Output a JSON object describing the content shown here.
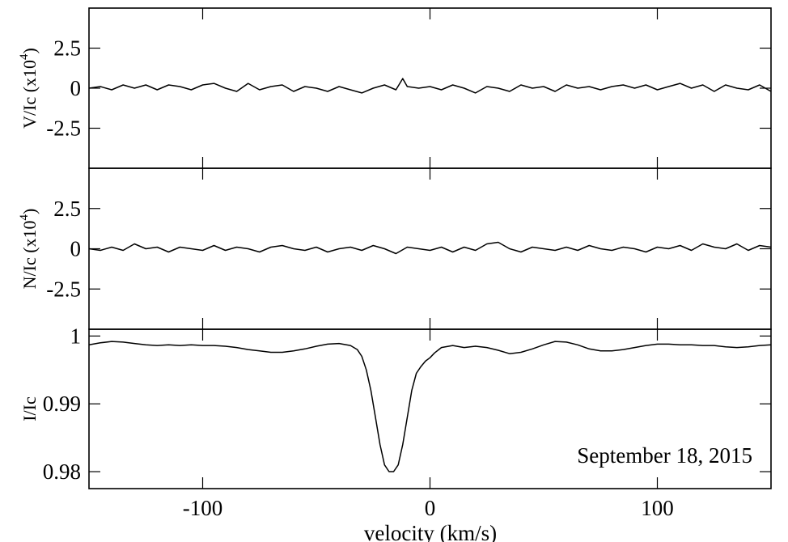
{
  "chart_data": {
    "type": "line",
    "xlabel": "velocity (km/s)",
    "xlim": [
      -150,
      150
    ],
    "x_ticks": [
      -100,
      0,
      100
    ],
    "x_tick_labels": [
      "-100",
      "0",
      "100"
    ],
    "annotation": "September 18, 2015",
    "panels": [
      {
        "id": "stokes-v",
        "ylabel_main": "V/Ic (x10",
        "ylabel_exp": "4",
        "ylabel_close": ")",
        "ylim": [
          -5,
          5
        ],
        "y_ticks": [
          2.5,
          0,
          -2.5
        ],
        "y_tick_labels": [
          "2.5",
          "0",
          "-2.5"
        ],
        "series": [
          {
            "x": [
              -150,
              -145,
              -140,
              -135,
              -130,
              -125,
              -120,
              -115,
              -110,
              -105,
              -100,
              -95,
              -90,
              -85,
              -80,
              -75,
              -70,
              -65,
              -60,
              -55,
              -50,
              -45,
              -40,
              -35,
              -30,
              -25,
              -20,
              -15,
              -12,
              -10,
              -5,
              0,
              5,
              10,
              15,
              20,
              25,
              30,
              35,
              40,
              45,
              50,
              55,
              60,
              65,
              70,
              75,
              80,
              85,
              90,
              95,
              100,
              105,
              110,
              115,
              120,
              125,
              130,
              135,
              140,
              145,
              150
            ],
            "y": [
              0.0,
              0.1,
              -0.1,
              0.2,
              0.0,
              0.2,
              -0.1,
              0.2,
              0.1,
              -0.1,
              0.2,
              0.3,
              0.0,
              -0.2,
              0.3,
              -0.1,
              0.1,
              0.2,
              -0.2,
              0.1,
              0.0,
              -0.2,
              0.1,
              -0.1,
              -0.3,
              0.0,
              0.2,
              -0.1,
              0.6,
              0.1,
              0.0,
              0.1,
              -0.1,
              0.2,
              0.0,
              -0.3,
              0.1,
              0.0,
              -0.2,
              0.2,
              0.0,
              0.1,
              -0.2,
              0.2,
              0.0,
              0.1,
              -0.1,
              0.1,
              0.2,
              0.0,
              0.2,
              -0.1,
              0.1,
              0.3,
              0.0,
              0.2,
              -0.2,
              0.2,
              0.0,
              -0.1,
              0.2,
              -0.2
            ]
          }
        ]
      },
      {
        "id": "null-n",
        "ylabel_main": "N/Ic (x10",
        "ylabel_exp": "4",
        "ylabel_close": ")",
        "ylim": [
          -5,
          5
        ],
        "y_ticks": [
          2.5,
          0,
          -2.5
        ],
        "y_tick_labels": [
          "2.5",
          "0",
          "-2.5"
        ],
        "series": [
          {
            "x": [
              -150,
              -145,
              -140,
              -135,
              -130,
              -125,
              -120,
              -115,
              -110,
              -105,
              -100,
              -95,
              -90,
              -85,
              -80,
              -75,
              -70,
              -65,
              -60,
              -55,
              -50,
              -45,
              -40,
              -35,
              -30,
              -25,
              -20,
              -15,
              -10,
              -5,
              0,
              5,
              10,
              15,
              20,
              25,
              30,
              35,
              40,
              45,
              50,
              55,
              60,
              65,
              70,
              75,
              80,
              85,
              90,
              95,
              100,
              105,
              110,
              115,
              120,
              125,
              130,
              135,
              140,
              145,
              150
            ],
            "y": [
              0.0,
              -0.1,
              0.1,
              -0.1,
              0.3,
              0.0,
              0.1,
              -0.2,
              0.1,
              0.0,
              -0.1,
              0.2,
              -0.1,
              0.1,
              0.0,
              -0.2,
              0.1,
              0.2,
              0.0,
              -0.1,
              0.1,
              -0.2,
              0.0,
              0.1,
              -0.1,
              0.2,
              0.0,
              -0.3,
              0.1,
              0.0,
              -0.1,
              0.1,
              -0.2,
              0.1,
              -0.1,
              0.3,
              0.4,
              0.0,
              -0.2,
              0.1,
              0.0,
              -0.1,
              0.1,
              -0.1,
              0.2,
              0.0,
              -0.1,
              0.1,
              0.0,
              -0.2,
              0.1,
              0.0,
              0.2,
              -0.1,
              0.3,
              0.1,
              0.0,
              0.3,
              -0.1,
              0.2,
              0.1
            ]
          }
        ]
      },
      {
        "id": "stokes-i",
        "ylabel_main": "I/Ic",
        "ylabel_exp": "",
        "ylabel_close": "",
        "ylim": [
          0.9775,
          1.001
        ],
        "y_ticks": [
          1.0,
          0.99,
          0.98
        ],
        "y_tick_labels": [
          "1",
          "0.99",
          "0.98"
        ],
        "series": [
          {
            "x": [
              -150,
              -145,
              -140,
              -135,
              -130,
              -125,
              -120,
              -115,
              -110,
              -105,
              -100,
              -95,
              -90,
              -85,
              -80,
              -75,
              -70,
              -65,
              -60,
              -55,
              -50,
              -45,
              -40,
              -35,
              -32,
              -30,
              -28,
              -26,
              -24,
              -22,
              -20,
              -18,
              -16,
              -14,
              -12,
              -10,
              -8,
              -6,
              -4,
              -2,
              0,
              2,
              5,
              10,
              15,
              20,
              25,
              30,
              35,
              40,
              45,
              50,
              55,
              60,
              65,
              70,
              75,
              80,
              85,
              90,
              95,
              100,
              105,
              110,
              115,
              120,
              125,
              130,
              135,
              140,
              145,
              150
            ],
            "y": [
              0.9987,
              0.999,
              0.9992,
              0.9991,
              0.9989,
              0.9987,
              0.9986,
              0.9987,
              0.9986,
              0.9987,
              0.9986,
              0.9986,
              0.9985,
              0.9983,
              0.998,
              0.9978,
              0.9976,
              0.9976,
              0.9978,
              0.9981,
              0.9985,
              0.9988,
              0.9989,
              0.9986,
              0.998,
              0.997,
              0.995,
              0.992,
              0.988,
              0.984,
              0.981,
              0.98,
              0.98,
              0.981,
              0.984,
              0.988,
              0.992,
              0.9945,
              0.9955,
              0.9963,
              0.9968,
              0.9975,
              0.9983,
              0.9986,
              0.9983,
              0.9985,
              0.9983,
              0.9979,
              0.9974,
              0.9976,
              0.9981,
              0.9987,
              0.9992,
              0.9991,
              0.9987,
              0.9981,
              0.9978,
              0.9978,
              0.998,
              0.9983,
              0.9986,
              0.9988,
              0.9988,
              0.9987,
              0.9987,
              0.9986,
              0.9986,
              0.9984,
              0.9983,
              0.9984,
              0.9986,
              0.9987
            ]
          }
        ]
      }
    ]
  }
}
